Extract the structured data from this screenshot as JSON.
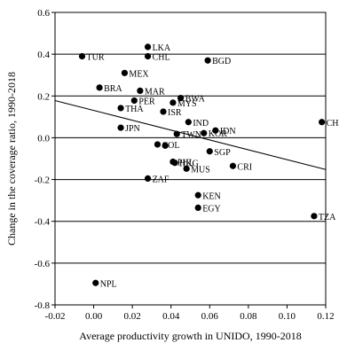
{
  "chart_data": {
    "type": "scatter",
    "title": "",
    "xlabel": "Average productivity growth in UNIDO, 1990-2018",
    "ylabel": "Change in the coverage ratio, 1990-2018",
    "xlim": [
      -0.02,
      0.12
    ],
    "ylim": [
      -0.8,
      0.6
    ],
    "xticks": [
      -0.02,
      0.0,
      0.02,
      0.04,
      0.06,
      0.08,
      0.1,
      0.12
    ],
    "xtick_labels": [
      "-0.02",
      "0.00",
      "0.02",
      "0.04",
      "0.06",
      "0.08",
      "0.10",
      "0.12"
    ],
    "yticks": [
      -0.8,
      -0.6,
      -0.4,
      -0.2,
      0.0,
      0.2,
      0.4,
      0.6
    ],
    "ytick_labels": [
      "-0.8",
      "-0.6",
      "-0.4",
      "-0.2",
      "0.0",
      "0.2",
      "0.4",
      "0.6"
    ],
    "grid": "horizontal",
    "marker_color": "#000000",
    "points": [
      {
        "label": "LKA",
        "x": 0.028,
        "y": 0.435
      },
      {
        "label": "TUR",
        "x": -0.006,
        "y": 0.39
      },
      {
        "label": "CHL",
        "x": 0.028,
        "y": 0.39
      },
      {
        "label": "BGD",
        "x": 0.059,
        "y": 0.37
      },
      {
        "label": "MEX",
        "x": 0.016,
        "y": 0.31
      },
      {
        "label": "BRA",
        "x": 0.003,
        "y": 0.24
      },
      {
        "label": "MAR",
        "x": 0.024,
        "y": 0.225
      },
      {
        "label": "BWA",
        "x": 0.045,
        "y": 0.19
      },
      {
        "label": "PER",
        "x": 0.021,
        "y": 0.178
      },
      {
        "label": "MYS",
        "x": 0.041,
        "y": 0.168
      },
      {
        "label": "THA",
        "x": 0.014,
        "y": 0.142
      },
      {
        "label": "ISR",
        "x": 0.036,
        "y": 0.125
      },
      {
        "label": "IND",
        "x": 0.049,
        "y": 0.075
      },
      {
        "label": "CHN",
        "x": 0.118,
        "y": 0.075
      },
      {
        "label": "JPN",
        "x": 0.014,
        "y": 0.048
      },
      {
        "label": "IDN",
        "x": 0.063,
        "y": 0.035
      },
      {
        "label": "KOR",
        "x": 0.057,
        "y": 0.022
      },
      {
        "label": "TWN",
        "x": 0.043,
        "y": 0.018
      },
      {
        "label": "COL",
        "x": 0.033,
        "y": -0.032
      },
      {
        "label": "SGP",
        "x": 0.06,
        "y": -0.065
      },
      {
        "label": "PHL",
        "x": 0.041,
        "y": -0.115
      },
      {
        "label": "HKG",
        "x": 0.042,
        "y": -0.12
      },
      {
        "label": "MUS",
        "x": 0.048,
        "y": -0.148
      },
      {
        "label": "CRI",
        "x": 0.072,
        "y": -0.135
      },
      {
        "label": "ZAF",
        "x": 0.028,
        "y": -0.195
      },
      {
        "label": "KEN",
        "x": 0.054,
        "y": -0.275
      },
      {
        "label": "EGY",
        "x": 0.054,
        "y": -0.335
      },
      {
        "label": "TZA",
        "x": 0.114,
        "y": -0.375
      },
      {
        "label": "NPL",
        "x": 0.001,
        "y": -0.695
      },
      {
        "label": "",
        "x": 0.037,
        "y": -0.038
      }
    ],
    "fit_line": {
      "x": [
        -0.02,
        0.12
      ],
      "y": [
        0.178,
        -0.152
      ]
    }
  }
}
